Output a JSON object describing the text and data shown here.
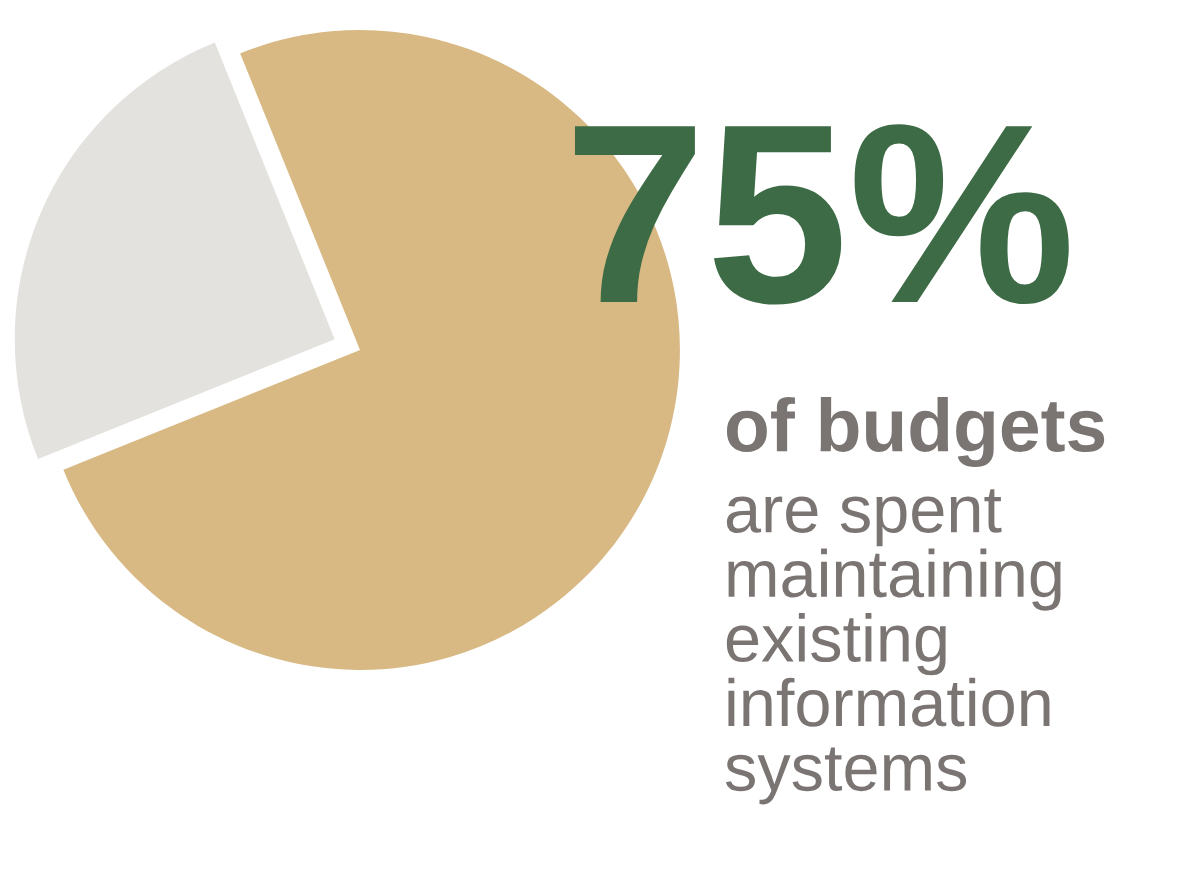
{
  "chart_data": {
    "type": "pie",
    "categories": [
      null,
      null
    ],
    "values": [
      75,
      25
    ],
    "colors": [
      "#d8b984",
      "#e4e2de"
    ],
    "annotations": [
      "75%",
      "of budgets",
      "are spent\nmaintaining\nexisting\ninformation\nsystems"
    ]
  }
}
